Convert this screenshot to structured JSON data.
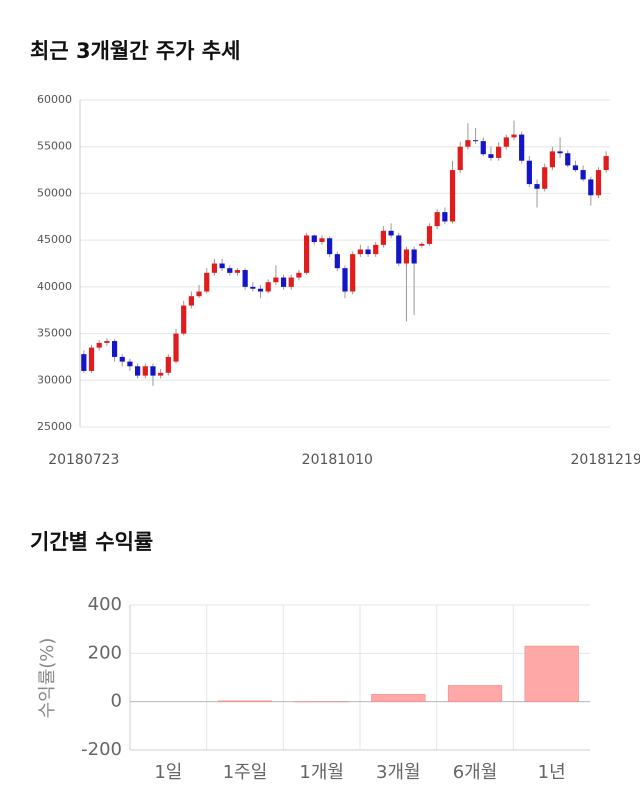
{
  "chart_data": [
    {
      "type": "candlestick",
      "title": "최근 3개월간 주가 추세",
      "categories": [
        "20180723",
        null,
        null,
        null,
        null,
        null,
        null,
        null,
        null,
        null,
        null,
        null,
        null,
        null,
        null,
        null,
        null,
        null,
        null,
        null,
        null,
        null,
        null,
        null,
        null,
        null,
        null,
        null,
        null,
        null,
        null,
        null,
        null,
        "20181010",
        null,
        null,
        null,
        null,
        null,
        null,
        null,
        null,
        null,
        null,
        null,
        null,
        null,
        null,
        null,
        null,
        null,
        null,
        null,
        null,
        null,
        null,
        null,
        null,
        null,
        null,
        null,
        null,
        null,
        null,
        null,
        null,
        null,
        null,
        "20181219"
      ],
      "open": [
        32800,
        31000,
        33500,
        34000,
        34200,
        32500,
        32000,
        31500,
        30500,
        31500,
        30500,
        30800,
        32000,
        35000,
        38000,
        39000,
        39500,
        41500,
        42500,
        42000,
        41500,
        41800,
        40000,
        39800,
        39500,
        40500,
        41000,
        40000,
        41000,
        41500,
        45500,
        44800,
        45200,
        43500,
        42000,
        39500,
        43500,
        44000,
        43500,
        44500,
        46000,
        45500,
        42500,
        44000,
        44400,
        44600,
        46500,
        48000,
        47000,
        52500,
        55000,
        55700,
        55600,
        54200,
        53800,
        55000,
        56000,
        56300,
        53500,
        51000,
        50500,
        52800,
        54500,
        54300,
        53000,
        52500,
        51500,
        49800,
        52500
      ],
      "high": [
        33200,
        33800,
        34300,
        34500,
        34400,
        32800,
        32300,
        31800,
        31800,
        31800,
        31200,
        32800,
        35500,
        38500,
        39500,
        40200,
        42000,
        43000,
        43000,
        42300,
        42000,
        42000,
        40500,
        40200,
        40800,
        42300,
        41300,
        41300,
        41800,
        45800,
        45600,
        45500,
        45400,
        43800,
        42300,
        43800,
        44500,
        44400,
        44800,
        46500,
        46800,
        45800,
        44300,
        44300,
        44800,
        46800,
        48300,
        48500,
        53500,
        55500,
        57500,
        57000,
        56000,
        55000,
        55500,
        56300,
        57800,
        56600,
        54000,
        51500,
        53200,
        55000,
        56000,
        54600,
        53500,
        53000,
        51800,
        52800,
        54500
      ],
      "low": [
        30800,
        30800,
        33200,
        33700,
        32000,
        31500,
        31000,
        30200,
        30200,
        29400,
        30200,
        30500,
        31800,
        34800,
        37700,
        38800,
        39300,
        41200,
        41700,
        41200,
        41200,
        39700,
        39500,
        38800,
        39300,
        40200,
        39700,
        39700,
        40700,
        41300,
        44500,
        44500,
        43200,
        41700,
        38800,
        39200,
        43200,
        43200,
        43200,
        44200,
        45200,
        42200,
        36300,
        37000,
        44200,
        44400,
        46200,
        46700,
        46800,
        52200,
        54700,
        55300,
        54000,
        53500,
        53500,
        54700,
        55700,
        53200,
        50700,
        48500,
        50200,
        52500,
        53800,
        52800,
        52300,
        51300,
        48700,
        49500,
        52200
      ],
      "close": [
        31000,
        33500,
        34000,
        34200,
        32500,
        32000,
        31500,
        30500,
        31500,
        30500,
        30800,
        32500,
        35000,
        38000,
        39000,
        39500,
        41500,
        42500,
        42000,
        41500,
        41800,
        40000,
        39800,
        39500,
        40500,
        41000,
        40000,
        41000,
        41500,
        45500,
        44800,
        45200,
        43500,
        42000,
        39500,
        43500,
        44000,
        43500,
        44500,
        46000,
        45500,
        42500,
        44000,
        42500,
        44600,
        46500,
        48000,
        47000,
        52500,
        55000,
        55700,
        55600,
        54200,
        53800,
        55000,
        56000,
        56300,
        53500,
        51000,
        50500,
        52800,
        54500,
        54300,
        53000,
        52500,
        51500,
        49800,
        52500,
        54000
      ],
      "up_color": "#e01c1c",
      "down_color": "#1414c8",
      "ylim": [
        25000,
        60000
      ],
      "yticks": [
        25000,
        30000,
        35000,
        40000,
        45000,
        50000,
        55000,
        60000
      ],
      "grid": true
    },
    {
      "type": "bar",
      "title": "기간별 수익률",
      "ylabel": "수익률(%)",
      "categories": [
        "1일",
        "1주일",
        "1개월",
        "3개월",
        "6개월",
        "1년"
      ],
      "values": [
        0,
        3,
        -1,
        30,
        67,
        230
      ],
      "color": "#ffa8a8",
      "ylim": [
        -200,
        400
      ],
      "yticks": [
        -200,
        0,
        200,
        400
      ],
      "grid": true
    }
  ]
}
